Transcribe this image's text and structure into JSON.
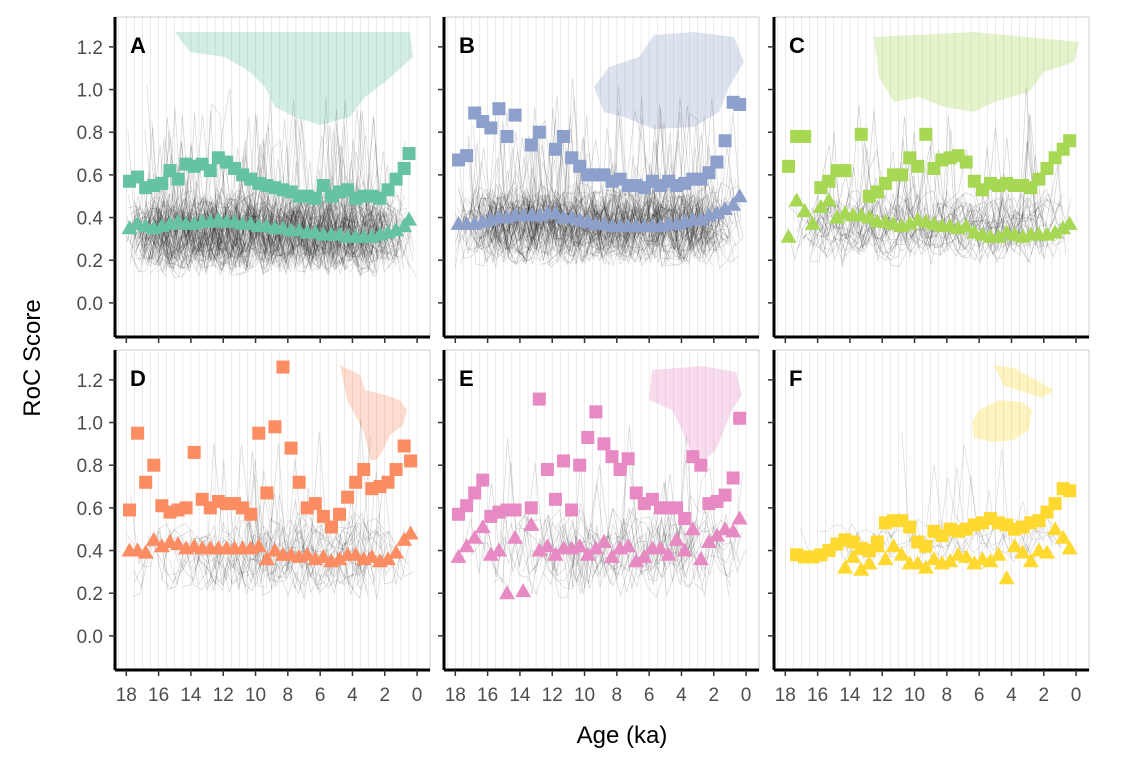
{
  "chart_data": {
    "type": "scatter",
    "layout": "facet-grid-2x3",
    "xlabel": "Age (ka)",
    "ylabel": "RoC Score",
    "xlim": [
      18.7,
      -0.8
    ],
    "ylim": [
      -0.16,
      1.34
    ],
    "x_reversed": true,
    "x_ticks": [
      18,
      16,
      14,
      12,
      10,
      8,
      6,
      4,
      2,
      0
    ],
    "x_tick_labels": [
      "18",
      "16",
      "14",
      "12",
      "10",
      "8",
      "6",
      "4",
      "2",
      "0"
    ],
    "y_ticks": [
      0.0,
      0.2,
      0.4,
      0.6,
      0.8,
      1.0,
      1.2
    ],
    "y_tick_labels": [
      "0.0",
      "0.2",
      "0.4",
      "0.6",
      "0.8",
      "1.0",
      "1.2"
    ],
    "grid": false,
    "legend": "none",
    "panels": [
      {
        "label": "A",
        "color": "#66c2a5",
        "region_icon": "north-america-map-icon",
        "series": [
          {
            "marker": "square",
            "x": [
              17.8,
              17.3,
              16.8,
              16.3,
              15.8,
              15.3,
              14.8,
              14.3,
              13.8,
              13.3,
              12.8,
              12.3,
              11.8,
              11.3,
              10.8,
              10.3,
              9.8,
              9.3,
              8.8,
              8.3,
              7.8,
              7.3,
              6.8,
              6.3,
              5.8,
              5.3,
              4.8,
              4.3,
              3.8,
              3.3,
              2.8,
              2.3,
              1.8,
              1.3,
              0.8,
              0.5
            ],
            "y": [
              0.57,
              0.59,
              0.54,
              0.55,
              0.56,
              0.62,
              0.58,
              0.65,
              0.64,
              0.65,
              0.62,
              0.68,
              0.66,
              0.63,
              0.6,
              0.58,
              0.56,
              0.55,
              0.54,
              0.53,
              0.52,
              0.5,
              0.5,
              0.49,
              0.55,
              0.5,
              0.52,
              0.53,
              0.49,
              0.5,
              0.5,
              0.49,
              0.53,
              0.58,
              0.63,
              0.7
            ]
          },
          {
            "marker": "triangle",
            "x": [
              17.8,
              17.3,
              16.8,
              16.3,
              15.8,
              15.3,
              14.8,
              14.3,
              13.8,
              13.3,
              12.8,
              12.3,
              11.8,
              11.3,
              10.8,
              10.3,
              9.8,
              9.3,
              8.8,
              8.3,
              7.8,
              7.3,
              6.8,
              6.3,
              5.8,
              5.3,
              4.8,
              4.3,
              3.8,
              3.3,
              2.8,
              2.3,
              1.8,
              1.3,
              0.8,
              0.5
            ],
            "y": [
              0.35,
              0.37,
              0.36,
              0.35,
              0.36,
              0.37,
              0.38,
              0.37,
              0.37,
              0.38,
              0.38,
              0.39,
              0.38,
              0.38,
              0.37,
              0.37,
              0.36,
              0.36,
              0.35,
              0.35,
              0.34,
              0.34,
              0.33,
              0.33,
              0.32,
              0.32,
              0.32,
              0.31,
              0.31,
              0.31,
              0.31,
              0.32,
              0.33,
              0.34,
              0.36,
              0.39
            ]
          }
        ]
      },
      {
        "label": "B",
        "color": "#8da0cb",
        "region_icon": "europe-map-icon",
        "series": [
          {
            "marker": "square",
            "x": [
              17.8,
              17.3,
              16.8,
              16.3,
              15.8,
              15.3,
              14.8,
              14.3,
              13.3,
              12.8,
              11.8,
              11.3,
              10.8,
              10.3,
              9.8,
              9.3,
              8.8,
              8.3,
              7.8,
              7.3,
              6.8,
              6.3,
              5.8,
              5.3,
              4.8,
              4.3,
              3.8,
              3.3,
              2.8,
              2.3,
              1.8,
              1.3,
              0.8,
              0.4
            ],
            "y": [
              0.67,
              0.69,
              0.89,
              0.85,
              0.82,
              0.91,
              0.78,
              0.88,
              0.74,
              0.8,
              0.72,
              0.78,
              0.68,
              0.64,
              0.6,
              0.6,
              0.6,
              0.57,
              0.58,
              0.55,
              0.55,
              0.54,
              0.57,
              0.55,
              0.57,
              0.55,
              0.56,
              0.58,
              0.58,
              0.61,
              0.66,
              0.76,
              0.94,
              0.93
            ]
          },
          {
            "marker": "triangle",
            "x": [
              17.8,
              17.3,
              16.8,
              16.3,
              15.8,
              15.3,
              14.8,
              14.3,
              13.8,
              13.3,
              12.8,
              12.3,
              11.8,
              11.3,
              10.8,
              10.3,
              9.8,
              9.3,
              8.8,
              8.3,
              7.8,
              7.3,
              6.8,
              6.3,
              5.8,
              5.3,
              4.8,
              4.3,
              3.8,
              3.3,
              2.8,
              2.3,
              1.8,
              1.3,
              0.8,
              0.4
            ],
            "y": [
              0.37,
              0.37,
              0.37,
              0.38,
              0.39,
              0.4,
              0.4,
              0.41,
              0.41,
              0.41,
              0.41,
              0.42,
              0.42,
              0.4,
              0.4,
              0.39,
              0.38,
              0.37,
              0.37,
              0.36,
              0.36,
              0.36,
              0.36,
              0.36,
              0.36,
              0.36,
              0.37,
              0.37,
              0.38,
              0.39,
              0.39,
              0.41,
              0.42,
              0.44,
              0.46,
              0.5
            ]
          }
        ]
      },
      {
        "label": "C",
        "color": "#a6d854",
        "region_icon": "asia-map-icon",
        "series": [
          {
            "marker": "square",
            "x": [
              17.8,
              17.3,
              16.8,
              15.8,
              15.3,
              14.8,
              14.3,
              13.3,
              12.8,
              12.3,
              11.8,
              11.3,
              10.8,
              10.3,
              9.8,
              9.3,
              8.8,
              8.3,
              7.8,
              7.3,
              6.8,
              6.3,
              5.8,
              5.3,
              4.8,
              4.3,
              3.8,
              3.3,
              2.8,
              2.3,
              1.8,
              1.3,
              0.8,
              0.4
            ],
            "y": [
              0.64,
              0.78,
              0.78,
              0.54,
              0.57,
              0.62,
              0.62,
              0.79,
              0.5,
              0.52,
              0.56,
              0.6,
              0.6,
              0.68,
              0.64,
              0.79,
              0.63,
              0.67,
              0.68,
              0.69,
              0.66,
              0.57,
              0.53,
              0.56,
              0.55,
              0.56,
              0.55,
              0.55,
              0.54,
              0.58,
              0.63,
              0.68,
              0.72,
              0.76
            ]
          },
          {
            "marker": "triangle",
            "x": [
              17.8,
              17.3,
              16.8,
              16.3,
              15.8,
              15.3,
              14.8,
              14.3,
              13.8,
              13.3,
              12.8,
              12.3,
              11.8,
              11.3,
              10.8,
              10.3,
              9.8,
              9.3,
              8.8,
              8.3,
              7.8,
              7.3,
              6.8,
              6.3,
              5.8,
              5.3,
              4.8,
              4.3,
              3.8,
              3.3,
              2.8,
              2.3,
              1.8,
              1.3,
              0.8,
              0.4
            ],
            "y": [
              0.31,
              0.48,
              0.43,
              0.37,
              0.45,
              0.48,
              0.4,
              0.42,
              0.41,
              0.41,
              0.4,
              0.38,
              0.38,
              0.37,
              0.36,
              0.37,
              0.39,
              0.38,
              0.37,
              0.36,
              0.36,
              0.35,
              0.36,
              0.33,
              0.32,
              0.31,
              0.31,
              0.33,
              0.32,
              0.31,
              0.32,
              0.32,
              0.32,
              0.33,
              0.35,
              0.37
            ]
          }
        ]
      },
      {
        "label": "D",
        "color": "#fc8d62",
        "region_icon": "south-america-map-icon",
        "series": [
          {
            "marker": "square",
            "x": [
              17.8,
              17.3,
              16.8,
              16.3,
              15.8,
              15.3,
              14.8,
              14.3,
              13.8,
              13.3,
              12.8,
              12.3,
              11.8,
              11.3,
              10.8,
              10.3,
              9.8,
              9.3,
              8.8,
              8.3,
              7.8,
              7.3,
              6.8,
              6.3,
              5.8,
              5.3,
              4.8,
              4.3,
              3.8,
              3.3,
              2.8,
              2.3,
              1.8,
              1.3,
              0.8,
              0.4
            ],
            "y": [
              0.59,
              0.95,
              0.72,
              0.8,
              0.61,
              0.58,
              0.59,
              0.6,
              0.86,
              0.64,
              0.6,
              0.63,
              0.62,
              0.62,
              0.6,
              0.57,
              0.95,
              0.67,
              0.98,
              1.26,
              0.88,
              0.72,
              0.6,
              0.62,
              0.56,
              0.51,
              0.57,
              0.65,
              0.72,
              0.78,
              0.69,
              0.7,
              0.72,
              0.78,
              0.89,
              0.82
            ]
          },
          {
            "marker": "triangle",
            "x": [
              17.8,
              17.3,
              16.8,
              16.3,
              15.8,
              15.3,
              14.8,
              14.3,
              13.8,
              13.3,
              12.8,
              12.3,
              11.8,
              11.3,
              10.8,
              10.3,
              9.8,
              9.3,
              8.8,
              8.3,
              7.8,
              7.3,
              6.8,
              6.3,
              5.8,
              5.3,
              4.8,
              4.3,
              3.8,
              3.3,
              2.8,
              2.3,
              1.8,
              1.3,
              0.8,
              0.4
            ],
            "y": [
              0.4,
              0.4,
              0.39,
              0.45,
              0.42,
              0.44,
              0.43,
              0.41,
              0.42,
              0.41,
              0.41,
              0.41,
              0.41,
              0.41,
              0.41,
              0.41,
              0.42,
              0.36,
              0.4,
              0.38,
              0.38,
              0.37,
              0.38,
              0.36,
              0.37,
              0.35,
              0.36,
              0.38,
              0.38,
              0.36,
              0.37,
              0.35,
              0.36,
              0.39,
              0.45,
              0.48
            ]
          }
        ]
      },
      {
        "label": "E",
        "color": "#e78ac3",
        "region_icon": "africa-map-icon",
        "series": [
          {
            "marker": "square",
            "x": [
              17.8,
              17.3,
              16.8,
              16.3,
              15.8,
              15.3,
              14.8,
              14.3,
              13.3,
              12.8,
              12.3,
              11.8,
              11.3,
              10.8,
              10.3,
              9.8,
              9.3,
              8.8,
              8.3,
              7.8,
              7.3,
              6.8,
              6.3,
              5.8,
              5.3,
              4.8,
              4.3,
              3.8,
              3.3,
              2.8,
              2.3,
              1.8,
              1.3,
              0.8,
              0.4
            ],
            "y": [
              0.57,
              0.61,
              0.67,
              0.73,
              0.56,
              0.58,
              0.59,
              0.59,
              0.6,
              1.11,
              0.78,
              0.64,
              0.82,
              0.59,
              0.8,
              0.93,
              1.05,
              0.9,
              0.84,
              0.78,
              0.83,
              0.67,
              0.62,
              0.64,
              0.6,
              0.6,
              0.6,
              0.55,
              0.84,
              0.8,
              0.62,
              0.63,
              0.66,
              0.74,
              1.02
            ]
          },
          {
            "marker": "triangle",
            "x": [
              17.8,
              17.3,
              16.8,
              16.3,
              15.8,
              15.3,
              14.8,
              14.3,
              13.8,
              13.3,
              12.8,
              12.3,
              11.8,
              11.3,
              10.8,
              10.3,
              9.8,
              9.3,
              8.8,
              8.3,
              7.8,
              7.3,
              6.8,
              6.3,
              5.8,
              5.3,
              4.8,
              4.3,
              3.8,
              3.3,
              2.8,
              2.3,
              1.8,
              1.3,
              0.8,
              0.4
            ],
            "y": [
              0.37,
              0.42,
              0.46,
              0.51,
              0.38,
              0.4,
              0.2,
              0.46,
              0.21,
              0.52,
              0.4,
              0.42,
              0.38,
              0.41,
              0.41,
              0.42,
              0.38,
              0.41,
              0.44,
              0.37,
              0.41,
              0.42,
              0.35,
              0.37,
              0.41,
              0.41,
              0.38,
              0.45,
              0.4,
              0.5,
              0.36,
              0.44,
              0.47,
              0.5,
              0.49,
              0.55
            ]
          }
        ]
      },
      {
        "label": "F",
        "color": "#ffd92f",
        "region_icon": "australasia-map-icon",
        "series": [
          {
            "marker": "square",
            "x": [
              17.3,
              16.8,
              16.3,
              15.8,
              15.3,
              14.8,
              14.3,
              13.8,
              13.3,
              12.8,
              12.3,
              11.8,
              11.3,
              10.8,
              10.3,
              9.8,
              9.3,
              8.8,
              8.3,
              7.8,
              7.3,
              6.8,
              6.3,
              5.8,
              5.3,
              4.8,
              4.3,
              3.8,
              3.3,
              2.8,
              2.3,
              1.8,
              1.3,
              0.8,
              0.4
            ],
            "y": [
              0.38,
              0.37,
              0.37,
              0.38,
              0.4,
              0.43,
              0.45,
              0.44,
              0.41,
              0.4,
              0.44,
              0.53,
              0.54,
              0.54,
              0.51,
              0.44,
              0.42,
              0.49,
              0.47,
              0.5,
              0.49,
              0.5,
              0.52,
              0.53,
              0.55,
              0.53,
              0.52,
              0.5,
              0.51,
              0.53,
              0.54,
              0.58,
              0.62,
              0.69,
              0.68
            ]
          },
          {
            "marker": "triangle",
            "x": [
              14.3,
              13.8,
              13.3,
              12.8,
              12.3,
              11.8,
              11.3,
              10.8,
              10.3,
              9.8,
              9.3,
              8.8,
              8.3,
              7.8,
              7.3,
              6.8,
              6.3,
              5.8,
              5.3,
              4.8,
              4.3,
              3.8,
              3.3,
              2.8,
              2.3,
              1.8,
              1.3,
              0.8,
              0.4
            ],
            "y": [
              0.32,
              0.37,
              0.31,
              0.34,
              0.42,
              0.36,
              0.42,
              0.38,
              0.34,
              0.34,
              0.32,
              0.36,
              0.34,
              0.35,
              0.38,
              0.37,
              0.34,
              0.36,
              0.35,
              0.38,
              0.27,
              0.42,
              0.39,
              0.35,
              0.4,
              0.39,
              0.5,
              0.46,
              0.41
            ]
          }
        ]
      }
    ]
  }
}
